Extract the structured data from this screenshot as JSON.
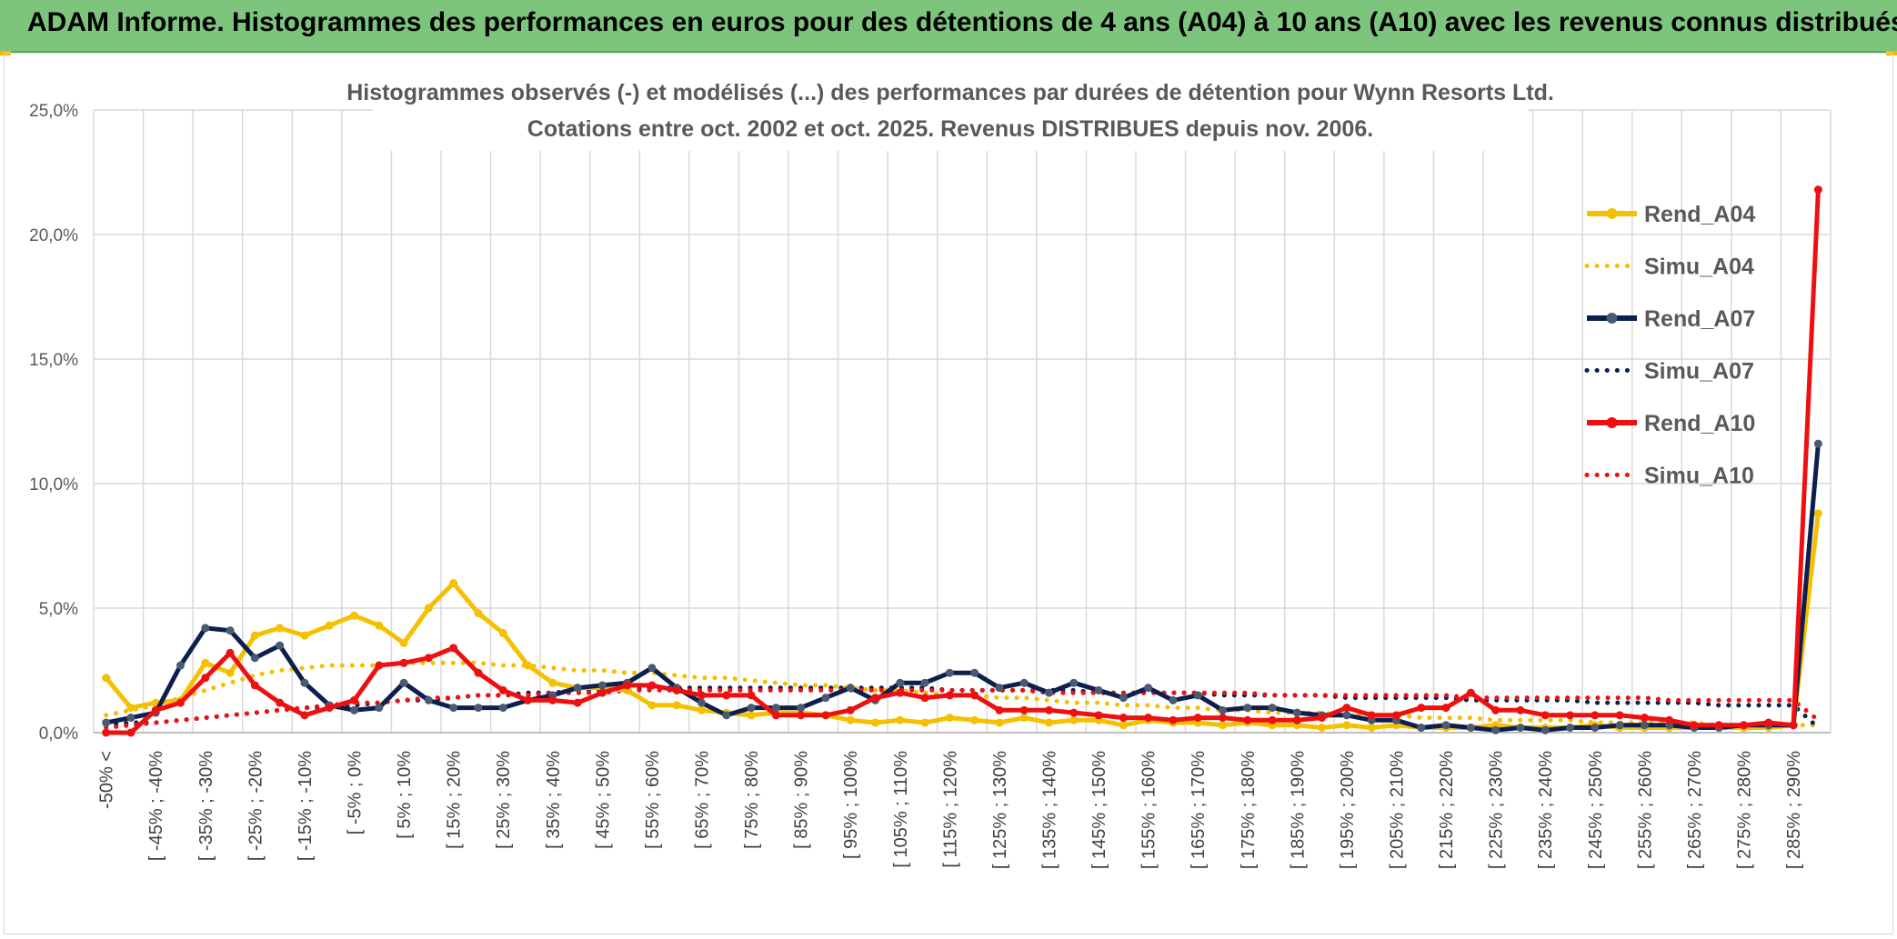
{
  "header": {
    "title": "ADAM Informe. Histogrammes des performances en euros pour des détentions de 4 ans (A04) à 10 ans (A10) avec les revenus connus distribués"
  },
  "chart_data": {
    "type": "line",
    "title": "Histogrammes observés (-) et modélisés (...) des performances par durées de détention pour Wynn Resorts Ltd.",
    "subtitle": "Cotations entre oct. 2002 et oct. 2025. Revenus DISTRIBUES depuis nov. 2006.",
    "xlabel": "",
    "ylabel": "",
    "ylim": [
      0,
      25
    ],
    "y_ticks": [
      "0,0%",
      "5,0%",
      "10,0%",
      "15,0%",
      "20,0%",
      "25,0%"
    ],
    "grid": true,
    "legend_position": "right",
    "x_labels": [
      "-50% <",
      "[ -45% ; -40%",
      "[ -35% ; -30%",
      "[ -25% ; -20%",
      "[ -15% ; -10%",
      "[ -5% ; 0%",
      "[ 5% ; 10%",
      "[ 15% ; 20%",
      "[ 25% ; 30%",
      "[ 35% ; 40%",
      "[ 45% ; 50%",
      "[ 55% ; 60%",
      "[ 65% ; 70%",
      "[ 75% ; 80%",
      "[ 85% ; 90%",
      "[ 95% ; 100%",
      "[ 105% ; 110%",
      "[ 115% ; 120%",
      "[ 125% ; 130%",
      "[ 135% ; 140%",
      "[ 145% ; 150%",
      "[ 155% ; 160%",
      "[ 165% ; 170%",
      "[ 175% ; 180%",
      "[ 185% ; 190%",
      "[ 195% ; 200%",
      "[ 205% ; 210%",
      "[ 215% ; 220%",
      "[ 225% ; 230%",
      "[ 235% ; 240%",
      "[ 245% ; 250%",
      "[ 255% ; 260%",
      "[ 265% ; 270%",
      "[ 275% ; 280%",
      "[ 285% ; 290%"
    ],
    "series": [
      {
        "name": "Rend_A04",
        "color": "#f5c000",
        "style": "solid",
        "marker": true,
        "values": [
          2.2,
          1.0,
          1.2,
          1.3,
          2.8,
          2.4,
          3.9,
          4.2,
          3.9,
          4.3,
          4.7,
          4.3,
          3.6,
          5.0,
          6.0,
          4.8,
          4.0,
          2.7,
          2.0,
          1.8,
          1.8,
          1.7,
          1.1,
          1.1,
          0.9,
          0.8,
          0.7,
          0.8,
          0.8,
          0.7,
          0.5,
          0.4,
          0.5,
          0.4,
          0.6,
          0.5,
          0.4,
          0.6,
          0.4,
          0.5,
          0.5,
          0.3,
          0.5,
          0.4,
          0.4,
          0.3,
          0.4,
          0.3,
          0.3,
          0.2,
          0.3,
          0.2,
          0.3,
          0.2,
          0.2,
          0.2,
          0.3,
          0.2,
          0.2,
          0.2,
          0.3,
          0.2,
          0.2,
          0.2,
          0.2,
          0.2,
          0.2,
          0.2,
          0.3,
          8.8
        ]
      },
      {
        "name": "Simu_A04",
        "color": "#f5c000",
        "style": "dotted",
        "marker": false,
        "values": [
          0.7,
          0.9,
          1.1,
          1.4,
          1.7,
          2.0,
          2.3,
          2.5,
          2.6,
          2.7,
          2.7,
          2.7,
          2.8,
          2.8,
          2.8,
          2.8,
          2.7,
          2.7,
          2.6,
          2.5,
          2.5,
          2.4,
          2.4,
          2.3,
          2.2,
          2.2,
          2.1,
          2.0,
          1.9,
          1.9,
          1.8,
          1.7,
          1.7,
          1.6,
          1.5,
          1.5,
          1.4,
          1.4,
          1.3,
          1.2,
          1.2,
          1.1,
          1.1,
          1.0,
          1.0,
          0.9,
          0.9,
          0.8,
          0.8,
          0.8,
          0.7,
          0.7,
          0.7,
          0.6,
          0.6,
          0.6,
          0.5,
          0.5,
          0.5,
          0.5,
          0.4,
          0.4,
          0.4,
          0.4,
          0.4,
          0.3,
          0.3,
          0.3,
          0.3,
          0.3
        ]
      },
      {
        "name": "Rend_A07",
        "color": "#0d1f4f",
        "style": "solid",
        "marker": true,
        "values": [
          0.4,
          0.6,
          0.8,
          2.7,
          4.2,
          4.1,
          3.0,
          3.5,
          2.0,
          1.1,
          0.9,
          1.0,
          2.0,
          1.3,
          1.0,
          1.0,
          1.0,
          1.3,
          1.5,
          1.8,
          1.9,
          2.0,
          2.6,
          1.8,
          1.2,
          0.7,
          1.0,
          1.0,
          1.0,
          1.4,
          1.8,
          1.3,
          2.0,
          2.0,
          2.4,
          2.4,
          1.8,
          2.0,
          1.6,
          2.0,
          1.7,
          1.4,
          1.8,
          1.3,
          1.5,
          0.9,
          1.0,
          1.0,
          0.8,
          0.7,
          0.7,
          0.5,
          0.5,
          0.2,
          0.3,
          0.2,
          0.1,
          0.2,
          0.1,
          0.2,
          0.2,
          0.3,
          0.3,
          0.3,
          0.2,
          0.2,
          0.3,
          0.3,
          0.3,
          11.6
        ]
      },
      {
        "name": "Simu_A07",
        "color": "#0d1f4f",
        "style": "dotted",
        "marker": false,
        "values": [
          0.3,
          0.4,
          0.4,
          0.5,
          0.6,
          0.7,
          0.8,
          0.9,
          1.0,
          1.0,
          1.1,
          1.2,
          1.3,
          1.3,
          1.4,
          1.5,
          1.5,
          1.6,
          1.6,
          1.7,
          1.7,
          1.7,
          1.8,
          1.8,
          1.8,
          1.8,
          1.8,
          1.8,
          1.8,
          1.8,
          1.8,
          1.8,
          1.8,
          1.8,
          1.7,
          1.7,
          1.7,
          1.7,
          1.7,
          1.7,
          1.6,
          1.6,
          1.6,
          1.6,
          1.6,
          1.5,
          1.5,
          1.5,
          1.5,
          1.5,
          1.4,
          1.4,
          1.4,
          1.4,
          1.4,
          1.3,
          1.3,
          1.3,
          1.3,
          1.3,
          1.2,
          1.2,
          1.2,
          1.2,
          1.2,
          1.1,
          1.1,
          1.1,
          1.1,
          0.2
        ]
      },
      {
        "name": "Rend_A10",
        "color": "#ee1010",
        "style": "solid",
        "marker": true,
        "values": [
          0.0,
          0.0,
          0.9,
          1.2,
          2.2,
          3.2,
          1.9,
          1.2,
          0.7,
          1.0,
          1.3,
          2.7,
          2.8,
          3.0,
          3.4,
          2.4,
          1.7,
          1.3,
          1.3,
          1.2,
          1.6,
          1.9,
          1.9,
          1.7,
          1.5,
          1.5,
          1.5,
          0.7,
          0.7,
          0.7,
          0.9,
          1.4,
          1.6,
          1.4,
          1.5,
          1.5,
          0.9,
          0.9,
          0.9,
          0.8,
          0.7,
          0.6,
          0.6,
          0.5,
          0.6,
          0.6,
          0.5,
          0.5,
          0.5,
          0.6,
          1.0,
          0.7,
          0.7,
          1.0,
          1.0,
          1.6,
          0.9,
          0.9,
          0.7,
          0.7,
          0.7,
          0.7,
          0.6,
          0.5,
          0.3,
          0.3,
          0.3,
          0.4,
          0.3,
          21.8
        ]
      },
      {
        "name": "Simu_A10",
        "color": "#ee1010",
        "style": "dotted",
        "marker": false,
        "values": [
          0.2,
          0.3,
          0.4,
          0.5,
          0.6,
          0.7,
          0.8,
          0.9,
          1.0,
          1.1,
          1.2,
          1.2,
          1.3,
          1.4,
          1.4,
          1.5,
          1.5,
          1.5,
          1.6,
          1.6,
          1.6,
          1.7,
          1.7,
          1.7,
          1.7,
          1.7,
          1.7,
          1.7,
          1.7,
          1.7,
          1.7,
          1.7,
          1.7,
          1.7,
          1.7,
          1.7,
          1.7,
          1.7,
          1.6,
          1.6,
          1.6,
          1.6,
          1.6,
          1.6,
          1.6,
          1.6,
          1.6,
          1.5,
          1.5,
          1.5,
          1.5,
          1.5,
          1.5,
          1.5,
          1.5,
          1.4,
          1.4,
          1.4,
          1.4,
          1.4,
          1.4,
          1.4,
          1.4,
          1.3,
          1.3,
          1.3,
          1.3,
          1.3,
          1.3,
          0.5
        ]
      }
    ]
  }
}
